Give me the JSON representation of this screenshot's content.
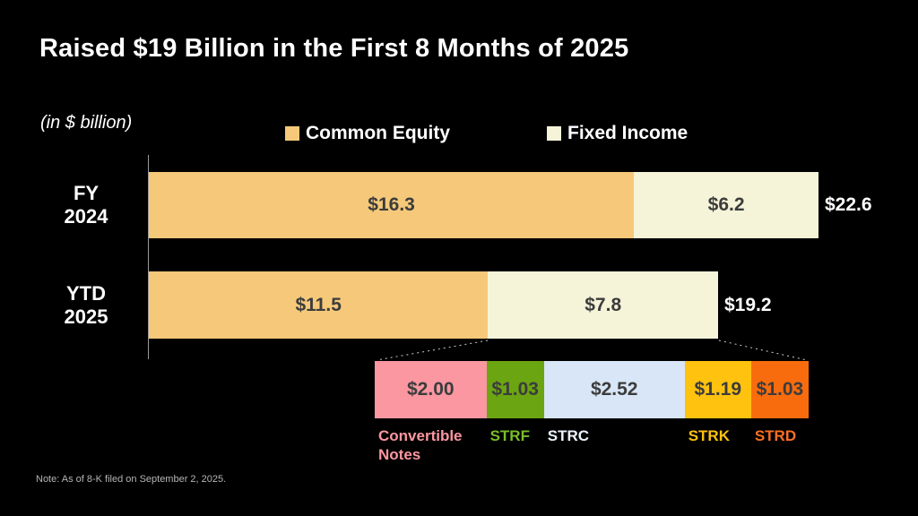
{
  "title": "Raised $19 Billion in the First 8 Months of 2025",
  "unit_label": "(in $ billion)",
  "note": "Note: As of 8-K filed on September 2, 2025.",
  "colors": {
    "background": "#000000",
    "title_text": "#ffffff",
    "bar_value_text": "#3c3c3c",
    "axis_line": "#9a9a9a",
    "connector_line": "#cccccc",
    "footnote_text": "#b5b5b5"
  },
  "legend": [
    {
      "label": "Common Equity",
      "color": "#F6C97A"
    },
    {
      "label": "Fixed Income",
      "color": "#F5F4D9"
    }
  ],
  "chart_data": {
    "type": "bar",
    "orientation": "horizontal",
    "stacked": true,
    "x_max": 22.6,
    "grid": false,
    "legend_position": "top",
    "series_names": [
      "Common Equity",
      "Fixed Income"
    ],
    "series_colors": [
      "#F6C97A",
      "#F5F4D9"
    ],
    "rows": [
      {
        "category_lines": [
          "FY",
          "2024"
        ],
        "values": [
          16.3,
          6.2
        ],
        "value_labels": [
          "$16.3",
          "$6.2"
        ],
        "total": 22.6,
        "total_label": "$22.6"
      },
      {
        "category_lines": [
          "YTD",
          "2025"
        ],
        "values": [
          11.5,
          7.8
        ],
        "value_labels": [
          "$11.5",
          "$7.8"
        ],
        "total": 19.2,
        "total_label": "$19.2"
      }
    ],
    "breakdown": {
      "of": "YTD 2025 Fixed Income",
      "segments": [
        {
          "label": "Convertible Notes",
          "value": 2.0,
          "value_label": "$2.00",
          "color": "#FB97A1",
          "label_color": "#FB97A1"
        },
        {
          "label": "STRF",
          "value": 1.03,
          "value_label": "$1.03",
          "color": "#6CA512",
          "label_color": "#79BE28"
        },
        {
          "label": "STRC",
          "value": 2.52,
          "value_label": "$2.52",
          "color": "#D8E6F7",
          "label_color": "#ECF2FC"
        },
        {
          "label": "STRK",
          "value": 1.19,
          "value_label": "$1.19",
          "color": "#FFC20E",
          "label_color": "#FFC20E"
        },
        {
          "label": "STRD",
          "value": 1.03,
          "value_label": "$1.03",
          "color": "#F96C0E",
          "label_color": "#FA7020"
        }
      ]
    }
  }
}
